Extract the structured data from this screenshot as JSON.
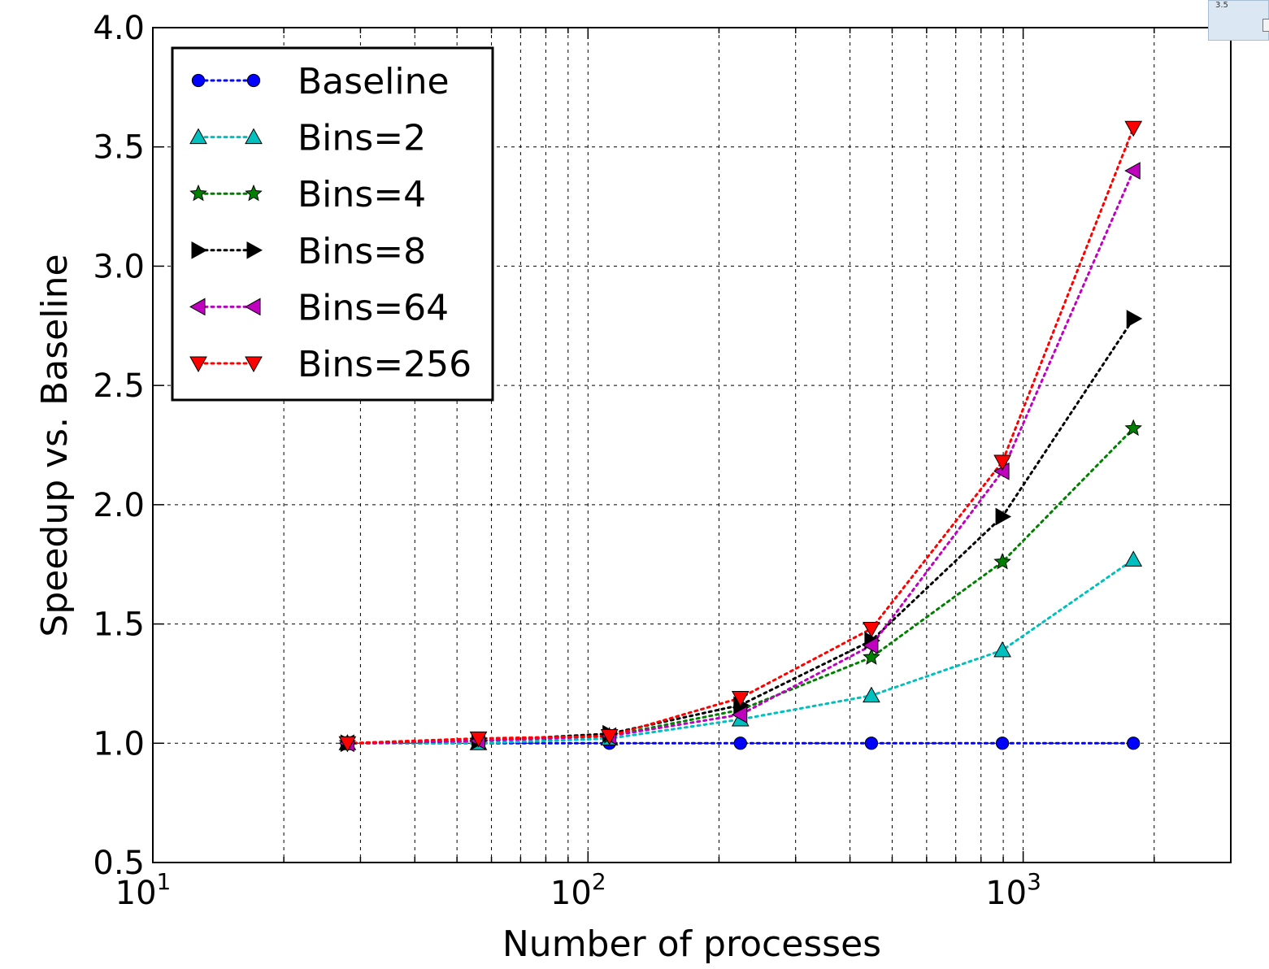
{
  "chart_data": {
    "type": "line",
    "xlabel": "Number of processes",
    "ylabel": "Speedup vs. Baseline",
    "xscale": "log",
    "xlim": [
      10,
      3000
    ],
    "ylim": [
      0.5,
      4.0
    ],
    "grid": true,
    "legend_position": "top-left",
    "yticks": [
      "0.5",
      "1.0",
      "1.5",
      "2.0",
      "2.5",
      "3.0",
      "3.5",
      "4.0"
    ],
    "xticks": [
      {
        "base": "10",
        "exp": "1"
      },
      {
        "base": "10",
        "exp": "2"
      },
      {
        "base": "10",
        "exp": "3"
      }
    ],
    "x": [
      28,
      56,
      112,
      224,
      448,
      896,
      1792
    ],
    "series": [
      {
        "name": "Baseline",
        "color": "#0000ff",
        "marker": "circle",
        "values": [
          1.0,
          1.0,
          1.0,
          1.0,
          1.0,
          1.0,
          1.0
        ]
      },
      {
        "name": "Bins=2",
        "color": "#00bfbf",
        "marker": "triangle-up",
        "values": [
          1.0,
          1.0,
          1.02,
          1.1,
          1.2,
          1.39,
          1.77
        ]
      },
      {
        "name": "Bins=4",
        "color": "#008000",
        "marker": "star",
        "values": [
          1.0,
          1.01,
          1.03,
          1.14,
          1.36,
          1.76,
          2.32
        ]
      },
      {
        "name": "Bins=8",
        "color": "#000000",
        "marker": "triangle-right",
        "values": [
          1.0,
          1.01,
          1.04,
          1.16,
          1.43,
          1.95,
          2.78
        ]
      },
      {
        "name": "Bins=64",
        "color": "#bf00bf",
        "marker": "triangle-left",
        "values": [
          1.0,
          1.01,
          1.03,
          1.12,
          1.41,
          2.14,
          3.4
        ]
      },
      {
        "name": "Bins=256",
        "color": "#ff0000",
        "marker": "triangle-down",
        "values": [
          1.0,
          1.02,
          1.03,
          1.19,
          1.48,
          2.18,
          3.58
        ]
      }
    ]
  },
  "widget": {
    "text": "3.5"
  }
}
